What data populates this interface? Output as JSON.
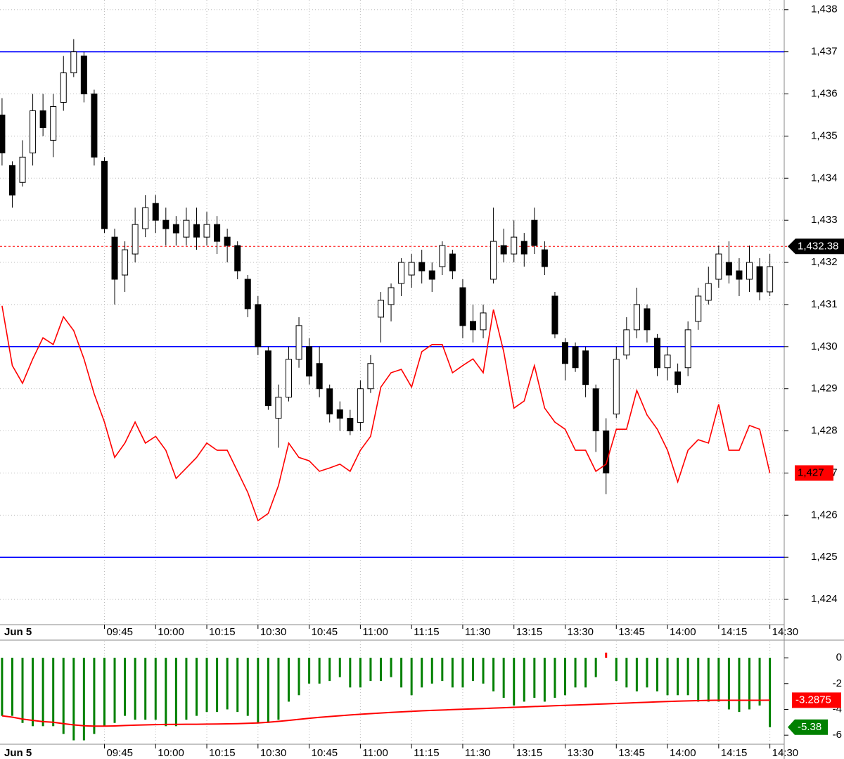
{
  "chart_data": [
    {
      "type": "candlestick",
      "date_label": "Jun 5",
      "x": [
        -10,
        -9,
        -8,
        -7,
        -6,
        -5,
        -4,
        -3,
        -2,
        -1,
        0,
        1,
        2,
        3,
        4,
        5,
        6,
        7,
        8,
        9,
        10,
        11,
        12,
        13,
        14,
        15,
        16,
        17,
        18,
        19,
        20,
        21,
        22,
        23,
        24,
        25,
        26,
        27,
        28,
        29,
        30,
        31,
        32,
        33,
        34,
        35,
        36,
        37,
        38,
        39,
        40,
        41,
        42,
        43,
        44,
        45,
        46,
        47,
        48,
        49,
        50,
        51,
        52,
        53,
        54,
        55,
        56,
        57,
        58,
        59,
        60,
        61,
        62,
        63,
        64,
        65
      ],
      "xlim": [
        -10.2,
        66.4
      ],
      "xticks": [
        {
          "value": 0,
          "label": "09:45"
        },
        {
          "value": 5,
          "label": "10:00"
        },
        {
          "value": 10,
          "label": "10:15"
        },
        {
          "value": 15,
          "label": "10:30"
        },
        {
          "value": 20,
          "label": "10:45"
        },
        {
          "value": 25,
          "label": "11:00"
        },
        {
          "value": 30,
          "label": "11:15"
        },
        {
          "value": 35,
          "label": "11:30"
        },
        {
          "value": 40,
          "label": "13:15"
        },
        {
          "value": 45,
          "label": "13:30"
        },
        {
          "value": 50,
          "label": "13:45"
        },
        {
          "value": 55,
          "label": "14:00"
        },
        {
          "value": 60,
          "label": "14:15"
        },
        {
          "value": 65,
          "label": "14:30"
        }
      ],
      "open": [
        1435.5,
        1434.3,
        1433.9,
        1434.6,
        1435.6,
        1434.9,
        1435.8,
        1436.5,
        1436.9,
        1436.0,
        1434.4,
        1432.6,
        1431.7,
        1432.2,
        1432.8,
        1433.4,
        1433.0,
        1432.9,
        1432.6,
        1432.9,
        1432.6,
        1432.9,
        1432.6,
        1432.4,
        1431.6,
        1431.0,
        1429.9,
        1428.3,
        1428.8,
        1429.7,
        1430.0,
        1429.6,
        1429.0,
        1428.5,
        1428.3,
        1428.2,
        1429.0,
        1430.7,
        1431.0,
        1431.5,
        1431.7,
        1432.0,
        1431.8,
        1431.9,
        1432.2,
        1431.4,
        1430.6,
        1430.4,
        1431.6,
        1432.4,
        1432.2,
        1432.5,
        1433.0,
        1432.3,
        1431.2,
        1430.1,
        1430.0,
        1429.9,
        1429.0,
        1428.0,
        1428.4,
        1429.8,
        1430.4,
        1430.9,
        1430.2,
        1429.5,
        1429.4,
        1429.5,
        1430.6,
        1431.1,
        1431.6,
        1432.0,
        1431.8,
        1431.6,
        1431.9,
        1431.3
      ],
      "high": [
        1435.9,
        1434.4,
        1434.9,
        1436.0,
        1436.0,
        1436.0,
        1436.9,
        1437.3,
        1437.0,
        1436.1,
        1434.5,
        1432.8,
        1432.5,
        1433.3,
        1433.6,
        1433.6,
        1433.3,
        1433.1,
        1433.3,
        1433.3,
        1433.2,
        1433.1,
        1432.8,
        1432.5,
        1431.7,
        1431.2,
        1430.0,
        1429.1,
        1430.0,
        1430.7,
        1430.2,
        1430.0,
        1429.1,
        1428.7,
        1428.5,
        1429.2,
        1429.8,
        1431.3,
        1431.5,
        1432.1,
        1432.2,
        1432.3,
        1432.0,
        1432.5,
        1432.3,
        1431.6,
        1431.0,
        1431.0,
        1433.3,
        1432.8,
        1433.0,
        1432.7,
        1433.3,
        1432.5,
        1431.3,
        1430.2,
        1430.1,
        1430.0,
        1429.1,
        1428.3,
        1430.0,
        1430.7,
        1431.4,
        1431.0,
        1430.3,
        1430.0,
        1429.6,
        1430.6,
        1431.4,
        1431.9,
        1432.4,
        1432.5,
        1432.1,
        1432.4,
        1432.1,
        1432.2
      ],
      "low": [
        1434.3,
        1433.3,
        1433.8,
        1434.3,
        1435.0,
        1434.5,
        1435.6,
        1436.4,
        1435.8,
        1434.3,
        1432.7,
        1431.0,
        1431.3,
        1432.0,
        1432.6,
        1432.7,
        1432.4,
        1432.4,
        1432.4,
        1432.3,
        1432.4,
        1432.2,
        1432.0,
        1431.6,
        1430.7,
        1429.8,
        1428.5,
        1427.6,
        1428.7,
        1429.5,
        1429.1,
        1428.8,
        1428.2,
        1428.0,
        1427.9,
        1428.0,
        1428.9,
        1430.1,
        1430.6,
        1431.2,
        1431.4,
        1431.5,
        1431.3,
        1431.7,
        1431.6,
        1430.2,
        1430.1,
        1430.2,
        1431.5,
        1432.0,
        1432.0,
        1431.9,
        1432.2,
        1431.7,
        1430.2,
        1429.2,
        1429.4,
        1428.8,
        1427.5,
        1426.5,
        1428.3,
        1429.7,
        1430.2,
        1430.1,
        1429.3,
        1429.2,
        1428.9,
        1429.3,
        1430.4,
        1431.0,
        1431.4,
        1431.5,
        1431.2,
        1431.3,
        1431.1,
        1431.2
      ],
      "close": [
        1434.6,
        1433.6,
        1434.5,
        1435.6,
        1435.2,
        1435.7,
        1436.5,
        1437.0,
        1436.0,
        1434.5,
        1432.8,
        1431.6,
        1432.3,
        1432.9,
        1433.3,
        1433.0,
        1432.8,
        1432.7,
        1433.0,
        1432.6,
        1432.9,
        1432.5,
        1432.4,
        1431.8,
        1430.9,
        1430.0,
        1428.6,
        1428.8,
        1429.7,
        1430.5,
        1429.3,
        1429.0,
        1428.4,
        1428.3,
        1428.0,
        1429.0,
        1429.6,
        1431.1,
        1431.4,
        1432.0,
        1432.0,
        1431.8,
        1431.6,
        1432.4,
        1431.8,
        1430.5,
        1430.4,
        1430.8,
        1432.5,
        1432.2,
        1432.6,
        1432.2,
        1432.4,
        1431.9,
        1430.3,
        1429.6,
        1429.5,
        1429.1,
        1428.0,
        1427.0,
        1429.7,
        1430.4,
        1431.0,
        1430.4,
        1429.5,
        1429.8,
        1429.1,
        1430.4,
        1431.2,
        1431.5,
        1432.2,
        1431.7,
        1431.6,
        1432.0,
        1431.3,
        1431.9
      ],
      "up_color": "#ffffff",
      "down_color": "#000000",
      "overlay": {
        "color": "#ff0000",
        "values": [
          1430.97,
          1429.55,
          1429.13,
          1429.71,
          1430.21,
          1430.05,
          1430.71,
          1430.38,
          1429.71,
          1428.88,
          1428.21,
          1427.37,
          1427.71,
          1428.21,
          1427.71,
          1427.87,
          1427.54,
          1426.87,
          1427.12,
          1427.37,
          1427.71,
          1427.54,
          1427.54,
          1427.04,
          1426.54,
          1425.87,
          1426.04,
          1426.7,
          1427.71,
          1427.37,
          1427.29,
          1427.04,
          1427.12,
          1427.21,
          1427.04,
          1427.54,
          1427.87,
          1429.04,
          1429.38,
          1429.46,
          1429.04,
          1429.88,
          1430.05,
          1430.05,
          1429.38,
          1429.55,
          1429.71,
          1429.38,
          1430.88,
          1429.88,
          1428.54,
          1428.71,
          1429.55,
          1428.54,
          1428.21,
          1428.04,
          1427.54,
          1427.54,
          1427.04,
          1427.21,
          1428.04,
          1428.04,
          1428.96,
          1428.38,
          1428.04,
          1427.54,
          1426.79,
          1427.54,
          1427.79,
          1427.71,
          1428.63,
          1427.54,
          1427.54,
          1428.13,
          1428.04,
          1427.0
        ]
      },
      "hlines": [
        {
          "value": 1437,
          "color": "#0000ff"
        },
        {
          "value": 1430,
          "color": "#0000ff"
        },
        {
          "value": 1425,
          "color": "#0000ff"
        }
      ],
      "last_price": {
        "value": 1432.38,
        "label": "1,432.38"
      },
      "overlay_label": {
        "value": 1427,
        "label": "1,427"
      },
      "ylim": [
        1423.4,
        1438.23
      ],
      "yticks": [
        {
          "value": 1424,
          "label": "1,424"
        },
        {
          "value": 1425,
          "label": "1,425"
        },
        {
          "value": 1426,
          "label": "1,426"
        },
        {
          "value": 1427,
          "label": "1,427"
        },
        {
          "value": 1428,
          "label": "1,428"
        },
        {
          "value": 1429,
          "label": "1,429"
        },
        {
          "value": 1430,
          "label": "1,430"
        },
        {
          "value": 1431,
          "label": "1,431"
        },
        {
          "value": 1432,
          "label": "1,432"
        },
        {
          "value": 1433,
          "label": "1,433"
        },
        {
          "value": 1434,
          "label": "1,434"
        },
        {
          "value": 1435,
          "label": "1,435"
        },
        {
          "value": 1436,
          "label": "1,436"
        },
        {
          "value": 1437,
          "label": "1,437"
        },
        {
          "value": 1438,
          "label": "1,438"
        }
      ],
      "grid": true
    },
    {
      "type": "bar",
      "date_label": "Jun 5",
      "x": [
        -10,
        -9,
        -8,
        -7,
        -6,
        -5,
        -4,
        -3,
        -2,
        -1,
        0,
        1,
        2,
        3,
        4,
        5,
        6,
        7,
        8,
        9,
        10,
        11,
        12,
        13,
        14,
        15,
        16,
        17,
        18,
        19,
        20,
        21,
        22,
        23,
        24,
        25,
        26,
        27,
        28,
        29,
        30,
        31,
        32,
        33,
        34,
        35,
        36,
        37,
        38,
        39,
        40,
        41,
        42,
        43,
        44,
        45,
        46,
        47,
        48,
        49,
        50,
        51,
        52,
        53,
        54,
        55,
        56,
        57,
        58,
        59,
        60,
        61,
        62,
        63,
        64,
        65
      ],
      "xlim": [
        -10.2,
        66.4
      ],
      "xticks": [
        {
          "value": 0,
          "label": "09:45"
        },
        {
          "value": 5,
          "label": "10:00"
        },
        {
          "value": 10,
          "label": "10:15"
        },
        {
          "value": 15,
          "label": "10:30"
        },
        {
          "value": 20,
          "label": "10:45"
        },
        {
          "value": 25,
          "label": "11:00"
        },
        {
          "value": 30,
          "label": "11:15"
        },
        {
          "value": 35,
          "label": "11:30"
        },
        {
          "value": 40,
          "label": "13:15"
        },
        {
          "value": 45,
          "label": "13:30"
        },
        {
          "value": 50,
          "label": "13:45"
        },
        {
          "value": 55,
          "label": "14:00"
        },
        {
          "value": 60,
          "label": "14:15"
        },
        {
          "value": 65,
          "label": "14:30"
        }
      ],
      "values": [
        -4.5,
        -4.5,
        -5.05,
        -5.3,
        -5.3,
        -5.3,
        -5.9,
        -6.4,
        -6.4,
        -5.9,
        -5.3,
        -5.05,
        -4.5,
        -4.8,
        -4.8,
        -4.8,
        -5.3,
        -5.3,
        -4.8,
        -4.5,
        -4.2,
        -4.2,
        -4.0,
        -4.2,
        -4.5,
        -5.05,
        -5.05,
        -4.8,
        -3.4,
        -2.9,
        -2.0,
        -2.0,
        -1.8,
        -1.5,
        -2.3,
        -2.3,
        -1.8,
        -1.8,
        -1.5,
        -2.3,
        -2.9,
        -2.3,
        -2.0,
        -1.8,
        -2.3,
        -2.3,
        -1.8,
        -2.0,
        -2.6,
        -3.1,
        -3.7,
        -3.4,
        -3.1,
        -3.4,
        -3.1,
        -2.9,
        -2.3,
        -2.3,
        -1.5,
        0.4,
        -1.8,
        -2.3,
        -2.6,
        -2.3,
        -2.6,
        -2.9,
        -2.9,
        -2.9,
        -3.4,
        -3.4,
        -3.4,
        -4.0,
        -4.2,
        -4.0,
        -3.7,
        -5.38
      ],
      "negative_color": "#008000",
      "positive_color": "#ff0000",
      "average": {
        "color": "#ff0000",
        "values": [
          -4.5,
          -4.6,
          -4.75,
          -4.85,
          -4.95,
          -5.0,
          -5.1,
          -5.2,
          -5.27,
          -5.3,
          -5.3,
          -5.28,
          -5.25,
          -5.22,
          -5.2,
          -5.18,
          -5.17,
          -5.16,
          -5.15,
          -5.15,
          -5.14,
          -5.13,
          -5.12,
          -5.1,
          -5.08,
          -5.05,
          -5.0,
          -4.93,
          -4.85,
          -4.77,
          -4.69,
          -4.62,
          -4.55,
          -4.49,
          -4.43,
          -4.38,
          -4.33,
          -4.28,
          -4.23,
          -4.19,
          -4.15,
          -4.11,
          -4.08,
          -4.05,
          -4.02,
          -3.99,
          -3.96,
          -3.93,
          -3.9,
          -3.87,
          -3.84,
          -3.81,
          -3.78,
          -3.75,
          -3.72,
          -3.69,
          -3.66,
          -3.63,
          -3.6,
          -3.57,
          -3.54,
          -3.51,
          -3.48,
          -3.45,
          -3.42,
          -3.39,
          -3.36,
          -3.34,
          -3.32,
          -3.3,
          -3.29,
          -3.29,
          -3.29,
          -3.29,
          -3.29,
          -3.2875
        ]
      },
      "average_label": -3.2875,
      "value_label": -5.38,
      "ylim": [
        -6.7,
        1.26
      ],
      "yticks": [
        0,
        -2,
        -4,
        -6
      ],
      "grid": true
    }
  ]
}
